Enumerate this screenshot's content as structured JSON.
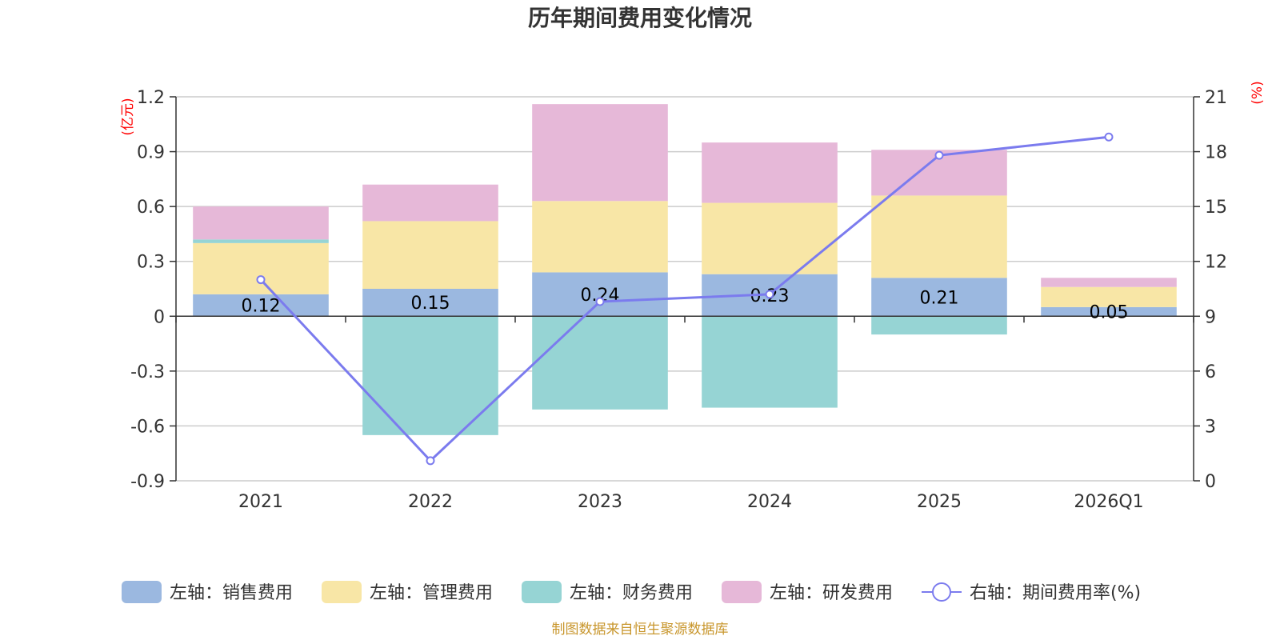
{
  "chart_data": {
    "type": "bar",
    "title": "历年期间费用变化情况",
    "categories": [
      "2021",
      "2022",
      "2023",
      "2024",
      "2025",
      "2026Q1"
    ],
    "left_axis": {
      "unit": "(亿元)",
      "ylim": [
        -0.9,
        1.2
      ],
      "ticks": [
        "1.2",
        "0.9",
        "0.6",
        "0.3",
        "0",
        "-0.3",
        "-0.6",
        "-0.9"
      ],
      "tick_values": [
        1.2,
        0.9,
        0.6,
        0.3,
        0,
        -0.3,
        -0.6,
        -0.9
      ]
    },
    "right_axis": {
      "unit": "(%)",
      "ylim": [
        0,
        21
      ],
      "ticks": [
        "21",
        "18",
        "15",
        "12",
        "9",
        "6",
        "3",
        "0"
      ],
      "tick_values": [
        21,
        18,
        15,
        12,
        9,
        6,
        3,
        0
      ]
    },
    "series": [
      {
        "name": "左轴：销售费用",
        "axis": "left",
        "type": "bar",
        "color": "#9bb8e0",
        "values": [
          0.12,
          0.15,
          0.24,
          0.23,
          0.21,
          0.05
        ]
      },
      {
        "name": "左轴：管理费用",
        "axis": "left",
        "type": "bar",
        "color": "#f8e6a6",
        "values": [
          0.28,
          0.37,
          0.39,
          0.39,
          0.45,
          0.11
        ]
      },
      {
        "name": "左轴：财务费用",
        "axis": "left",
        "type": "bar",
        "color": "#96d4d4",
        "values": [
          0.02,
          -0.65,
          -0.51,
          -0.5,
          -0.1,
          0.0
        ]
      },
      {
        "name": "左轴：研发费用",
        "axis": "left",
        "type": "bar",
        "color": "#e6b8d8",
        "values": [
          0.18,
          0.2,
          0.53,
          0.33,
          0.25,
          0.05
        ]
      },
      {
        "name": "右轴：期间费用率(%)",
        "axis": "right",
        "type": "line",
        "color": "#7b7bee",
        "values": [
          11.0,
          1.1,
          9.8,
          10.2,
          17.8,
          18.8
        ]
      }
    ],
    "data_labels": [
      "0.12",
      "0.15",
      "0.24",
      "0.23",
      "0.21",
      "0.05"
    ],
    "legend_position": "bottom",
    "grid": true
  },
  "footer": {
    "source": "制图数据来自恒生聚源数据库"
  }
}
